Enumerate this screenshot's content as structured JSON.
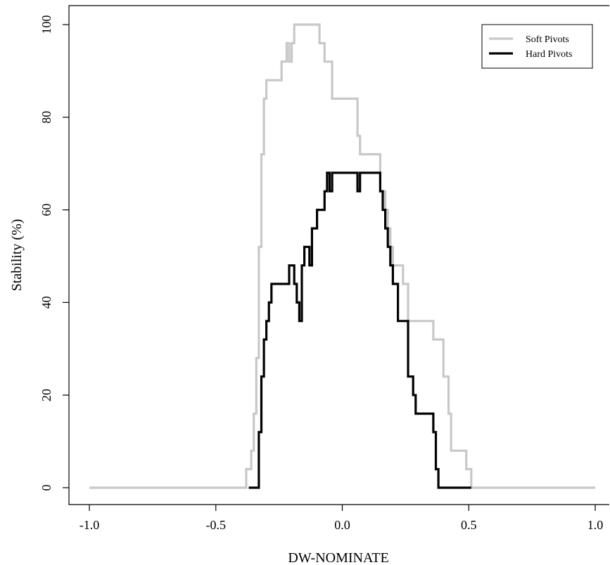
{
  "chart_data": {
    "type": "line",
    "xlabel": "DW-NOMINATE",
    "ylabel": "Stability (%)",
    "xlim": [
      -1.0,
      1.0
    ],
    "ylim": [
      0,
      100
    ],
    "x_ticks": [
      -1.0,
      -0.5,
      0.0,
      0.5,
      1.0
    ],
    "x_tick_labels": [
      "-1.0",
      "-0.5",
      "0.0",
      "0.5",
      "1.0"
    ],
    "y_ticks": [
      0,
      20,
      40,
      60,
      80,
      100
    ],
    "y_tick_labels": [
      "0",
      "20",
      "40",
      "60",
      "80",
      "100"
    ],
    "grid": false,
    "legend_position": "top-right",
    "series": [
      {
        "name": "Soft Pivots",
        "color": "#c8c8c8",
        "x": [
          -1.0,
          -0.38,
          -0.38,
          -0.36,
          -0.36,
          -0.35,
          -0.35,
          -0.34,
          -0.34,
          -0.33,
          -0.33,
          -0.32,
          -0.32,
          -0.31,
          -0.31,
          -0.3,
          -0.3,
          -0.24,
          -0.24,
          -0.22,
          -0.22,
          -0.21,
          -0.21,
          -0.2,
          -0.2,
          -0.19,
          -0.19,
          -0.09,
          -0.09,
          -0.07,
          -0.07,
          -0.04,
          -0.04,
          0.06,
          0.06,
          0.07,
          0.07,
          0.15,
          0.15,
          0.17,
          0.17,
          0.18,
          0.18,
          0.19,
          0.19,
          0.2,
          0.2,
          0.22,
          0.22,
          0.24,
          0.24,
          0.26,
          0.26,
          0.36,
          0.36,
          0.4,
          0.4,
          0.42,
          0.42,
          0.43,
          0.43,
          0.49,
          0.49,
          0.51,
          0.51,
          1.0
        ],
        "values": [
          0,
          0,
          4,
          4,
          8,
          8,
          16,
          16,
          28,
          28,
          52,
          52,
          72,
          72,
          84,
          84,
          88,
          88,
          92,
          92,
          96,
          96,
          92,
          92,
          96,
          96,
          100,
          100,
          96,
          96,
          92,
          92,
          84,
          84,
          76,
          76,
          72,
          72,
          64,
          64,
          60,
          60,
          56,
          56,
          52,
          52,
          48,
          48,
          48,
          48,
          44,
          44,
          36,
          36,
          32,
          32,
          24,
          24,
          16,
          16,
          8,
          8,
          4,
          4,
          0,
          0
        ]
      },
      {
        "name": "Hard Pivots",
        "color": "#000000",
        "x": [
          -0.37,
          -0.33,
          -0.33,
          -0.32,
          -0.32,
          -0.31,
          -0.31,
          -0.3,
          -0.3,
          -0.29,
          -0.29,
          -0.28,
          -0.28,
          -0.21,
          -0.21,
          -0.19,
          -0.19,
          -0.18,
          -0.18,
          -0.17,
          -0.17,
          -0.16,
          -0.16,
          -0.15,
          -0.15,
          -0.13,
          -0.13,
          -0.12,
          -0.12,
          -0.1,
          -0.1,
          -0.07,
          -0.07,
          -0.06,
          -0.06,
          -0.05,
          -0.05,
          -0.04,
          -0.04,
          -0.01,
          -0.01,
          0.06,
          0.06,
          0.07,
          0.07,
          0.15,
          0.15,
          0.16,
          0.16,
          0.17,
          0.17,
          0.18,
          0.18,
          0.19,
          0.19,
          0.2,
          0.2,
          0.22,
          0.22,
          0.26,
          0.26,
          0.28,
          0.28,
          0.29,
          0.29,
          0.36,
          0.36,
          0.37,
          0.37,
          0.38,
          0.38,
          0.51
        ],
        "values": [
          0,
          0,
          12,
          12,
          24,
          24,
          32,
          32,
          36,
          36,
          40,
          40,
          44,
          44,
          48,
          48,
          44,
          44,
          40,
          40,
          36,
          36,
          48,
          48,
          52,
          52,
          48,
          48,
          56,
          56,
          60,
          60,
          64,
          64,
          68,
          68,
          64,
          64,
          68,
          68,
          68,
          68,
          64,
          64,
          68,
          68,
          64,
          64,
          60,
          60,
          56,
          56,
          52,
          52,
          48,
          48,
          44,
          44,
          36,
          36,
          24,
          24,
          20,
          20,
          16,
          16,
          12,
          12,
          4,
          4,
          0,
          0
        ]
      }
    ]
  }
}
